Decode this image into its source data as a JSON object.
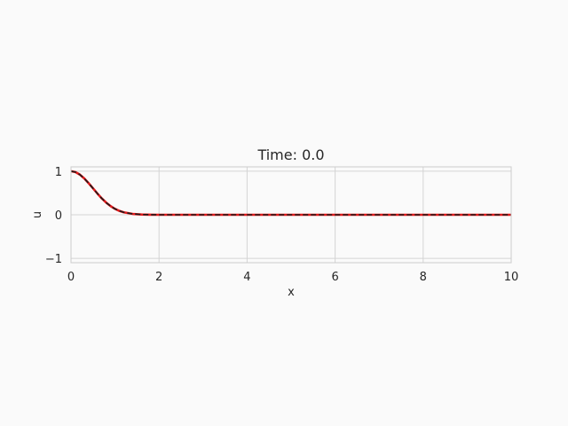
{
  "chart_data": {
    "type": "line",
    "title": "Time: 0.0",
    "xlabel": "x",
    "ylabel": "u",
    "xlim": [
      0,
      10
    ],
    "ylim": [
      -1.1,
      1.1
    ],
    "xticks": [
      0,
      2,
      4,
      6,
      8,
      10
    ],
    "xtick_labels": [
      "0",
      "2",
      "4",
      "6",
      "8",
      "10"
    ],
    "yticks": [
      -1,
      0,
      1
    ],
    "ytick_labels": [
      "−1",
      "0",
      "1"
    ],
    "grid": true,
    "series": [
      {
        "style": "solid",
        "color": "#e41a1c",
        "x": [
          0,
          0.1,
          0.2,
          0.3,
          0.4,
          0.5,
          0.6,
          0.7,
          0.8,
          0.9,
          1.0,
          1.1,
          1.2,
          1.4,
          1.6,
          1.8,
          2.0,
          3,
          4,
          5,
          6,
          7,
          8,
          9,
          10
        ],
        "y": [
          1.0,
          0.98,
          0.923,
          0.835,
          0.726,
          0.607,
          0.487,
          0.375,
          0.278,
          0.198,
          0.135,
          0.089,
          0.056,
          0.02,
          0.006,
          0.002,
          0.0,
          0,
          0,
          0,
          0,
          0,
          0,
          0,
          0
        ]
      },
      {
        "style": "dashed",
        "color": "#1a1a1a",
        "x": [
          0,
          0.1,
          0.2,
          0.3,
          0.4,
          0.5,
          0.6,
          0.7,
          0.8,
          0.9,
          1.0,
          1.1,
          1.2,
          1.4,
          1.6,
          1.8,
          2.0,
          3,
          4,
          5,
          6,
          7,
          8,
          9,
          10
        ],
        "y": [
          1.0,
          0.98,
          0.923,
          0.835,
          0.726,
          0.607,
          0.487,
          0.375,
          0.278,
          0.198,
          0.135,
          0.089,
          0.056,
          0.02,
          0.006,
          0.002,
          0.0,
          0,
          0,
          0,
          0,
          0,
          0,
          0,
          0
        ]
      }
    ]
  },
  "colors": {
    "background": "#fafafa",
    "plot_background": "#fafafa",
    "grid": "#d4d4d4",
    "spine": "#cccccc"
  }
}
